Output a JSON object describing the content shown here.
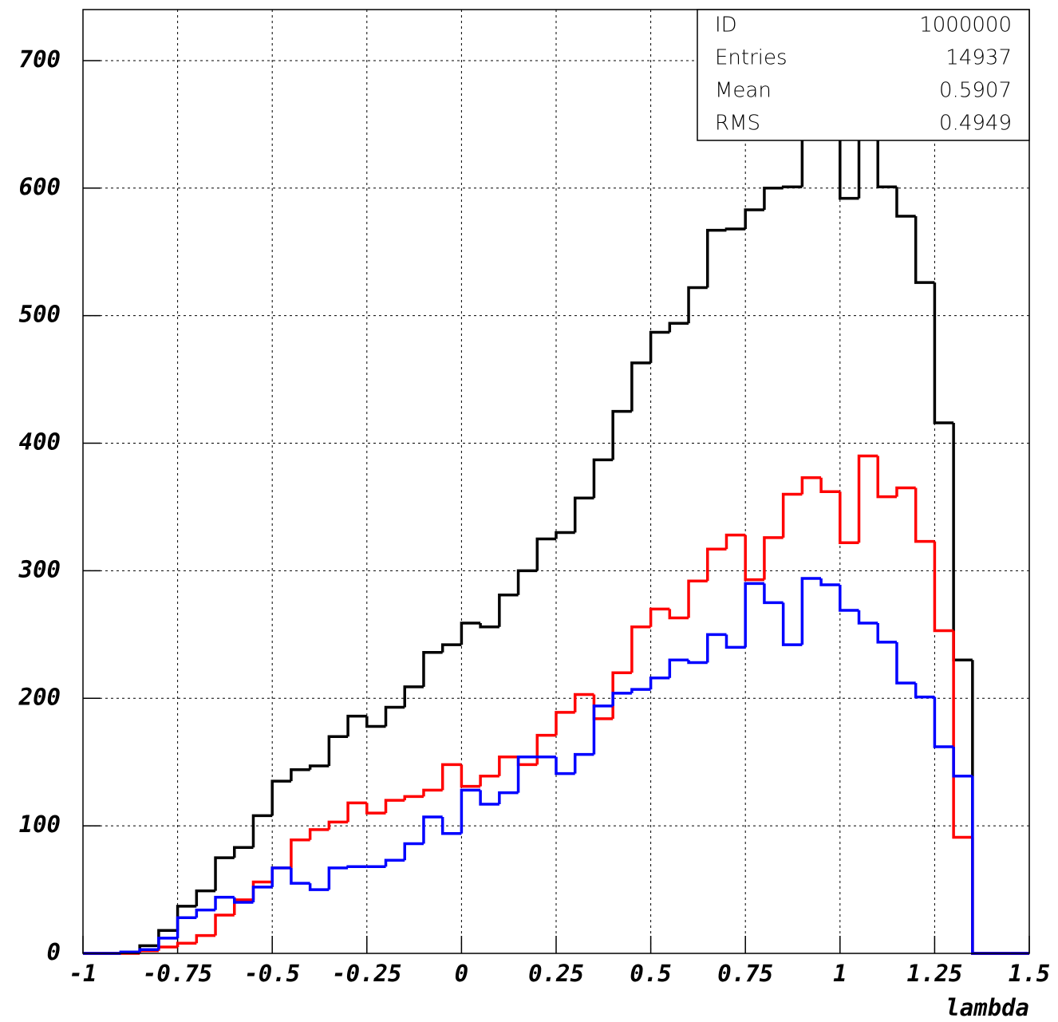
{
  "chart_data": {
    "type": "histogram",
    "x_label": "lambda",
    "bins": [
      -1,
      -0.95,
      -0.9,
      -0.85,
      -0.8,
      -0.75,
      -0.7,
      -0.65,
      -0.6,
      -0.55,
      -0.5,
      -0.45,
      -0.4,
      -0.35,
      -0.3,
      -0.25,
      -0.2,
      -0.15,
      -0.1,
      -0.05,
      0,
      0.05,
      0.1,
      0.15,
      0.2,
      0.25,
      0.3,
      0.35,
      0.4,
      0.45,
      0.5,
      0.55,
      0.6,
      0.65,
      0.7,
      0.75,
      0.8,
      0.85,
      0.9,
      0.95,
      1,
      1.05,
      1.1,
      1.15,
      1.2,
      1.25,
      1.3,
      1.35,
      1.4,
      1.45,
      1.5
    ],
    "series": [
      {
        "color": "#000000",
        "values": [
          0,
          0,
          1,
          6,
          18,
          37,
          49,
          75,
          83,
          108,
          135,
          144,
          147,
          170,
          186,
          178,
          193,
          209,
          236,
          242,
          259,
          256,
          281,
          300,
          325,
          330,
          357,
          387,
          425,
          463,
          487,
          494,
          522,
          567,
          568,
          583,
          600,
          601,
          667,
          651,
          592,
          649,
          601,
          578,
          526,
          416,
          230,
          0,
          0,
          0
        ]
      },
      {
        "color": "#ff0000",
        "values": [
          0,
          0,
          0,
          2,
          5,
          8,
          14,
          30,
          42,
          56,
          67,
          89,
          97,
          103,
          118,
          110,
          120,
          123,
          128,
          148,
          131,
          139,
          154,
          148,
          171,
          189,
          203,
          184,
          220,
          256,
          270,
          263,
          292,
          317,
          328,
          293,
          326,
          360,
          373,
          362,
          322,
          390,
          358,
          365,
          323,
          253,
          91,
          0,
          0,
          0
        ]
      },
      {
        "color": "#0000ff",
        "values": [
          0,
          0,
          1,
          3,
          12,
          28,
          34,
          44,
          40,
          52,
          67,
          55,
          50,
          67,
          68,
          68,
          73,
          86,
          107,
          94,
          128,
          117,
          126,
          154,
          154,
          141,
          156,
          194,
          204,
          207,
          216,
          230,
          228,
          250,
          240,
          290,
          275,
          242,
          294,
          289,
          269,
          259,
          244,
          212,
          201,
          162,
          139,
          0,
          0,
          0
        ]
      }
    ],
    "xlim": [
      -1,
      1.5
    ],
    "ylim": [
      0,
      740
    ],
    "xticks": [
      -1,
      -0.75,
      -0.5,
      -0.25,
      0,
      0.25,
      0.5,
      0.75,
      1,
      1.25,
      1.5
    ],
    "yticks": [
      0,
      100,
      200,
      300,
      400,
      500,
      600,
      700
    ],
    "grid": true,
    "stats": [
      {
        "label": "ID",
        "value": "1000000"
      },
      {
        "label": "Entries",
        "value": "14937"
      },
      {
        "label": "Mean",
        "value": "0.5907"
      },
      {
        "label": "RMS",
        "value": "0.4949"
      }
    ]
  }
}
